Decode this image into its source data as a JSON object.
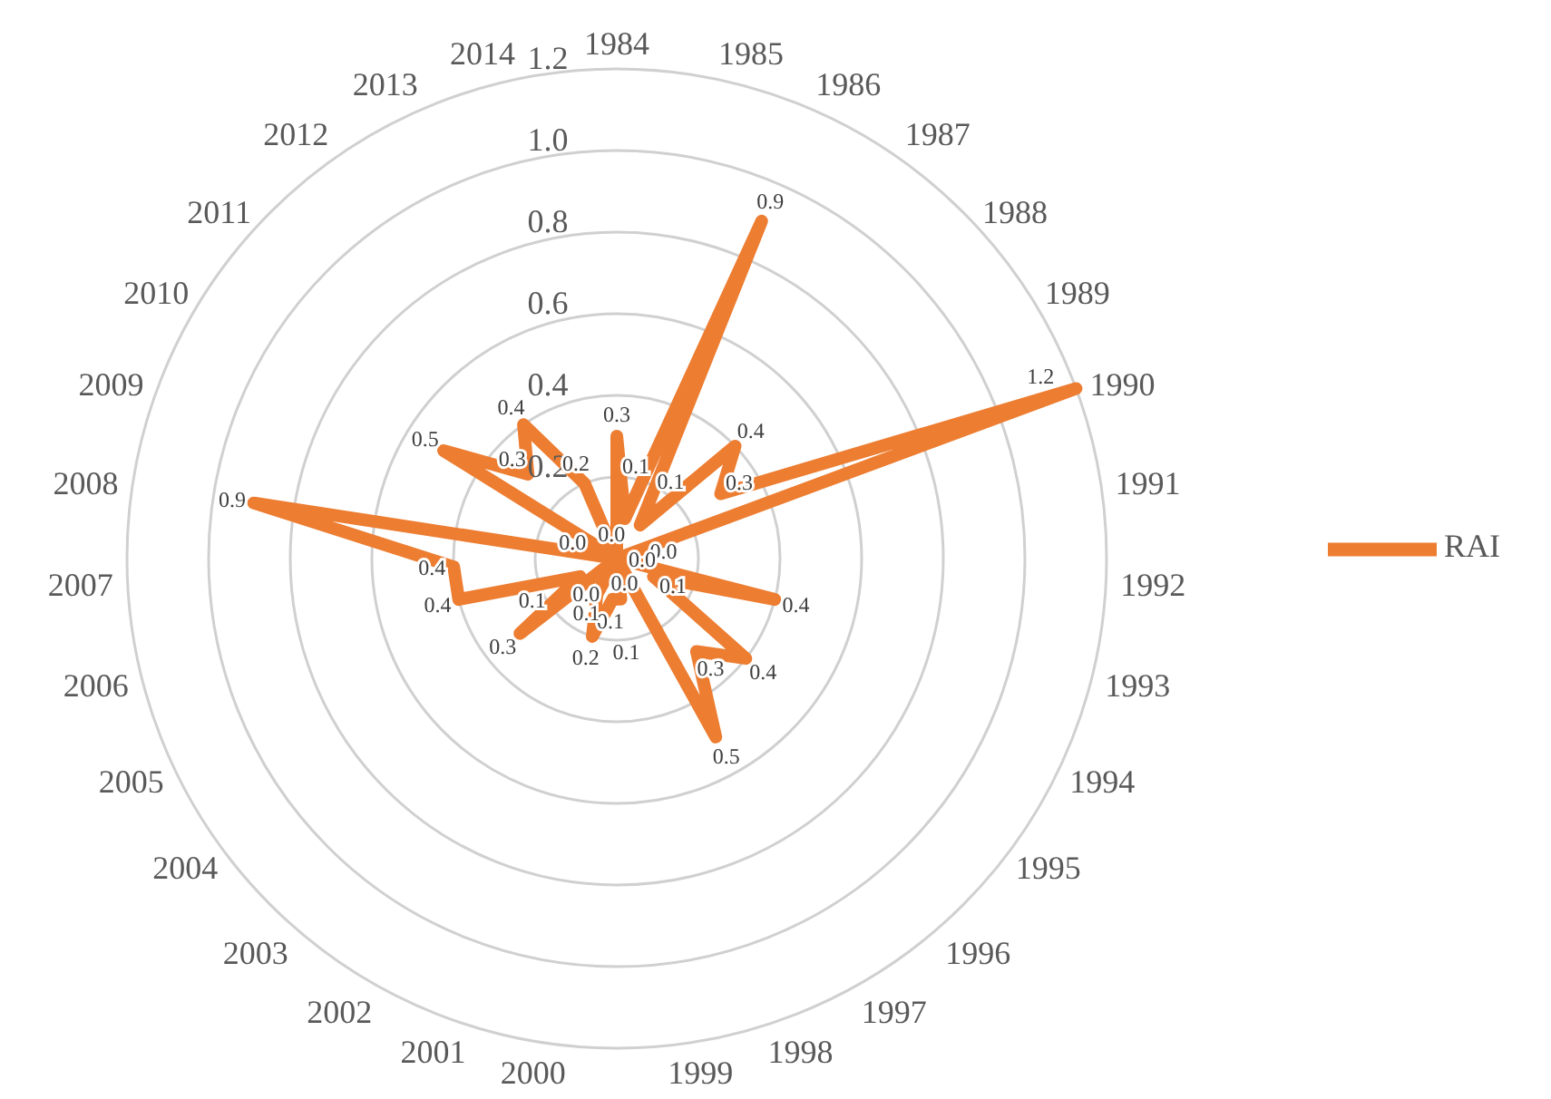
{
  "chart_data": {
    "type": "radar",
    "categories": [
      "1984",
      "1985",
      "1986",
      "1987",
      "1988",
      "1989",
      "1990",
      "1991",
      "1992",
      "1993",
      "1994",
      "1995",
      "1996",
      "1997",
      "1998",
      "1999",
      "2000",
      "2001",
      "2002",
      "2003",
      "2004",
      "2005",
      "2006",
      "2007",
      "2008",
      "2009",
      "2010",
      "2011",
      "2012",
      "2013",
      "2014"
    ],
    "series": [
      {
        "name": "RAI",
        "color": "#ed7d31",
        "values": [
          0.3,
          0.1,
          0.9,
          0.1,
          0.4,
          0.3,
          1.2,
          0.0,
          0.0,
          0.4,
          0.1,
          0.4,
          0.3,
          0.5,
          0.0,
          0.1,
          0.1,
          0.2,
          0.1,
          0.0,
          0.3,
          0.1,
          0.4,
          0.4,
          0.9,
          0.0,
          0.5,
          0.3,
          0.4,
          0.2,
          0.0
        ],
        "value_labels": [
          "0.3",
          "0.1",
          "0.9",
          "0.1",
          "0.4",
          "0.3",
          "1.2",
          "0.0",
          "0.0",
          "0.4",
          "0.1",
          "0.4",
          "0.3",
          "0.5",
          "0.0",
          "0.1",
          "0.1",
          "0.2",
          "0.1",
          "0.0",
          "0.3",
          "0.1",
          "0.4",
          "0.4",
          "0.9",
          "0.0",
          "0.5",
          "0.3",
          "0.4",
          "0.2",
          "0.0"
        ]
      }
    ],
    "ylim": [
      0,
      1.2
    ],
    "yticks": [
      {
        "value": 0.2,
        "label": "0.2"
      },
      {
        "value": 0.4,
        "label": "0.4"
      },
      {
        "value": 0.6,
        "label": "0.6"
      },
      {
        "value": 0.8,
        "label": "0.8"
      },
      {
        "value": 1,
        "label": "1.0"
      },
      {
        "value": 1.2,
        "label": "1.2"
      }
    ],
    "grid": true,
    "legend": "right",
    "data_labels": true,
    "marker": "none",
    "line_style": "solid"
  }
}
